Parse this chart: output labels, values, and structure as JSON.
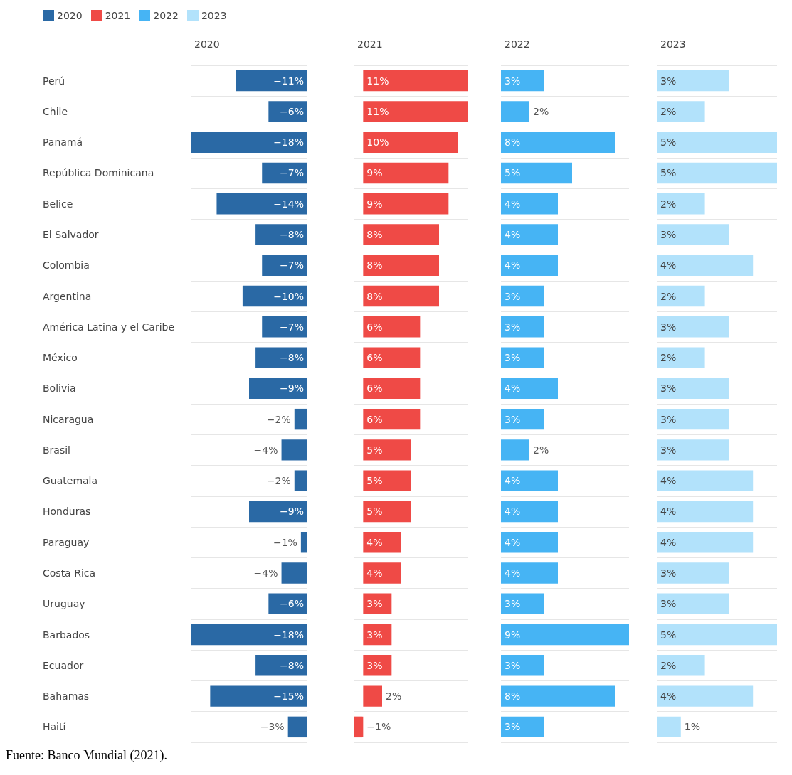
{
  "chart_data": [
    {
      "type": "bar",
      "orientation": "horizontal",
      "title": "2020",
      "categories": [
        "Perú",
        "Chile",
        "Panamá",
        "República Dominicana",
        "Belice",
        "El Salvador",
        "Colombia",
        "Argentina",
        "América Latina y el Caribe",
        "México",
        "Bolivia",
        "Nicaragua",
        "Brasil",
        "Guatemala",
        "Honduras",
        "Paraguay",
        "Costa Rica",
        "Uruguay",
        "Barbados",
        "Ecuador",
        "Bahamas",
        "Haití"
      ],
      "series": [
        {
          "name": "2020",
          "color": "#2a69a5",
          "values": [
            -11,
            -6,
            -18,
            -7,
            -14,
            -8,
            -7,
            -10,
            -7,
            -8,
            -9,
            -2,
            -4,
            -2,
            -9,
            -1,
            -4,
            -6,
            -18,
            -8,
            -15,
            -3
          ],
          "value_labels": [
            "−11%",
            "−6%",
            "−18%",
            "−7%",
            "−14%",
            "−8%",
            "−7%",
            "−10%",
            "−7%",
            "−8%",
            "−9%",
            "−2%",
            "−4%",
            "−2%",
            "−9%",
            "−1%",
            "−4%",
            "−6%",
            "−18%",
            "−8%",
            "−15%",
            "−3%"
          ]
        }
      ],
      "grid": "y",
      "legend": "top left",
      "tick_labels": "y",
      "annotations": [
        "Fuente: Banco Mundial (2021)."
      ]
    },
    {
      "type": "bar",
      "orientation": "horizontal",
      "title": "2021",
      "series": [
        {
          "name": "2021",
          "color": "#ef4a46",
          "values": [
            11,
            11,
            10,
            9,
            9,
            8,
            8,
            8,
            6,
            6,
            6,
            6,
            5,
            5,
            5,
            4,
            4,
            3,
            3,
            3,
            2,
            -1
          ],
          "value_labels": [
            "11%",
            "11%",
            "10%",
            "9%",
            "9%",
            "8%",
            "8%",
            "8%",
            "6%",
            "6%",
            "6%",
            "6%",
            "5%",
            "5%",
            "5%",
            "4%",
            "4%",
            "3%",
            "3%",
            "3%",
            "2%",
            "−1%"
          ]
        }
      ],
      "grid": "y",
      "legend": "top left",
      "tick_labels": false
    },
    {
      "type": "bar",
      "orientation": "horizontal",
      "title": "2022",
      "series": [
        {
          "name": "2022",
          "color": "#46b4f4",
          "values": [
            3,
            2,
            8,
            5,
            4,
            4,
            4,
            3,
            3,
            3,
            4,
            3,
            2,
            4,
            4,
            4,
            4,
            3,
            9,
            3,
            8,
            3
          ],
          "value_labels": [
            "3%",
            "2%",
            "8%",
            "5%",
            "4%",
            "4%",
            "4%",
            "3%",
            "3%",
            "3%",
            "4%",
            "3%",
            "2%",
            "4%",
            "4%",
            "4%",
            "4%",
            "3%",
            "9%",
            "3%",
            "8%",
            "3%"
          ]
        }
      ],
      "grid": "y",
      "legend": "top left",
      "tick_labels": false
    },
    {
      "type": "bar",
      "orientation": "horizontal",
      "title": "2023",
      "series": [
        {
          "name": "2023",
          "color": "#b2e2fb",
          "values": [
            3,
            2,
            5,
            5,
            2,
            3,
            4,
            2,
            3,
            2,
            3,
            3,
            3,
            4,
            4,
            4,
            3,
            3,
            5,
            2,
            4,
            1
          ],
          "value_labels": [
            "3%",
            "2%",
            "5%",
            "5%",
            "2%",
            "3%",
            "4%",
            "2%",
            "3%",
            "2%",
            "3%",
            "3%",
            "3%",
            "4%",
            "4%",
            "4%",
            "3%",
            "3%",
            "5%",
            "2%",
            "4%",
            "1%"
          ]
        }
      ],
      "grid": "y",
      "legend": "top left",
      "tick_labels": false
    }
  ]
}
